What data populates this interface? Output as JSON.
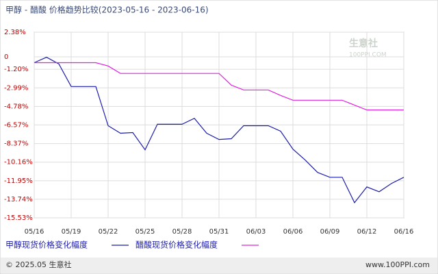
{
  "chart_data": {
    "type": "line",
    "title": "甲醇 - 醋酸 价格趋势比较(2023-05-16 - 2023-06-16)",
    "watermark": "生意社",
    "watermark_sub": "100PPI.COM",
    "footer_left": "© 2025.05 生意社",
    "footer_right": "www.100PPI.com",
    "categories": [
      "05/16",
      null,
      null,
      "05/19",
      null,
      null,
      "05/22",
      null,
      null,
      "05/25",
      null,
      null,
      "05/28",
      null,
      null,
      "05/31",
      null,
      null,
      "06/03",
      null,
      null,
      "06/06",
      null,
      null,
      "06/09",
      null,
      null,
      "06/12",
      null,
      null,
      "06/16"
    ],
    "ylim": [
      -15.53,
      2.38
    ],
    "yticks": [
      {
        "value": 2.38,
        "label": "2.38%"
      },
      0,
      {
        "value": -1.2,
        "label": "-1.20%"
      },
      {
        "value": -2.99,
        "label": "-2.99%"
      },
      {
        "value": -4.78,
        "label": "-4.78%"
      },
      {
        "value": -6.57,
        "label": "-6.57%"
      },
      {
        "value": -8.37,
        "label": "-8.37%"
      },
      {
        "value": -10.16,
        "label": "-10.16%"
      },
      {
        "value": -11.95,
        "label": "-11.95%"
      },
      {
        "value": -13.74,
        "label": "-13.74%"
      },
      {
        "value": -15.53,
        "label": "-15.53%"
      }
    ],
    "grid": true,
    "series": [
      {
        "name": "甲醇现货价格变化幅度",
        "color": "#1c1caa",
        "values": [
          -0.56,
          -0.04,
          -0.68,
          -2.86,
          -2.86,
          -2.86,
          -6.64,
          -7.37,
          -7.3,
          -8.97,
          -6.5,
          -6.5,
          -6.5,
          -5.93,
          -7.37,
          -7.97,
          -7.9,
          -6.64,
          -6.64,
          -6.64,
          -7.17,
          -8.9,
          -9.96,
          -11.15,
          -11.62,
          -11.62,
          -14.07,
          -12.55,
          -13.01,
          -12.22,
          -11.62
        ]
      },
      {
        "name": "醋酸现货价格变化幅度",
        "color": "#e020e0",
        "values": [
          -0.56,
          -0.56,
          -0.56,
          -0.56,
          -0.56,
          -0.56,
          -0.88,
          -1.6,
          -1.6,
          -1.6,
          -1.6,
          -1.6,
          -1.6,
          -1.6,
          -1.6,
          -1.6,
          -2.73,
          -3.19,
          -3.19,
          -3.19,
          -3.72,
          -4.18,
          -4.18,
          -4.18,
          -4.18,
          -4.18,
          -4.65,
          -5.12,
          -5.12,
          -5.12,
          -5.12
        ]
      }
    ]
  }
}
